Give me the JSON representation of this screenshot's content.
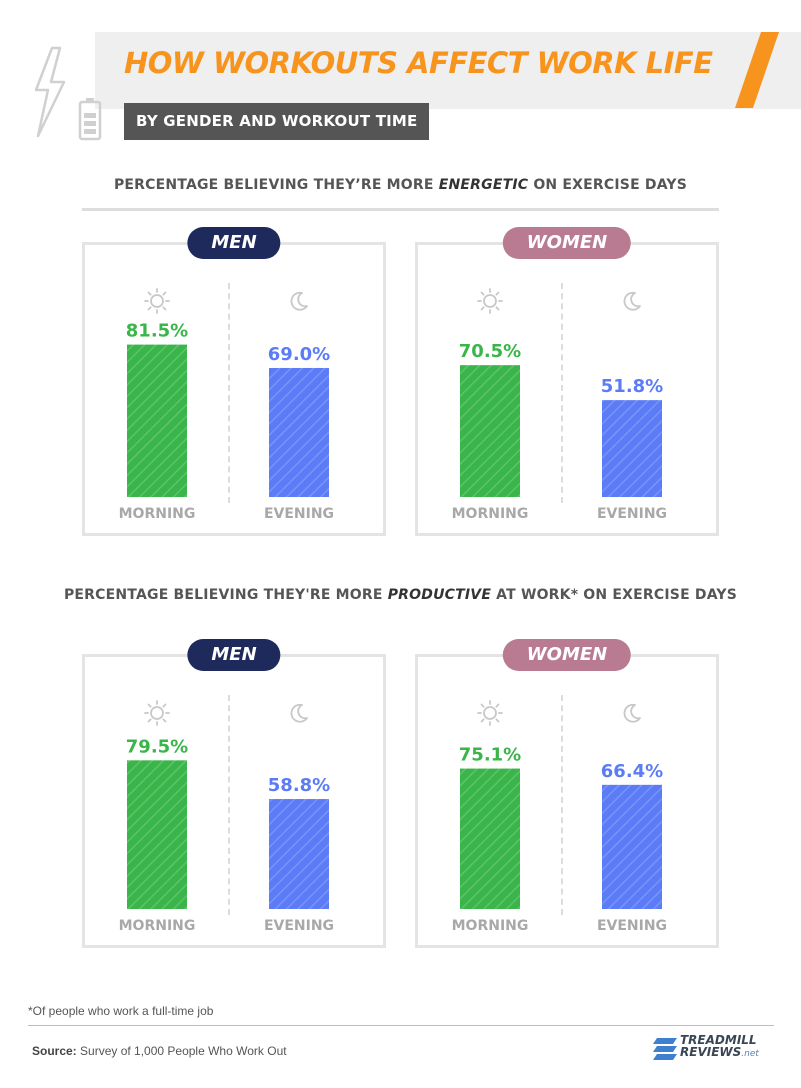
{
  "header": {
    "title": "HOW WORKOUTS AFFECT WORK LIFE",
    "subtitle": "BY GENDER AND WORKOUT TIME",
    "accent_color": "#f7941d"
  },
  "sections": [
    {
      "heading_pre": "PERCENTAGE BELIEVING THEY’RE MORE ",
      "heading_emph": "ENERGETIC",
      "heading_post": " ON EXERCISE DAYS"
    },
    {
      "heading_pre": "PERCENTAGE BELIEVING THEY'RE MORE ",
      "heading_emph": "PRODUCTIVE",
      "heading_post": " AT WORK* ON EXERCISE DAYS"
    }
  ],
  "panel_labels": {
    "men": "MEN",
    "women": "WOMEN"
  },
  "icons": {
    "morning": "sun-icon",
    "evening": "moon-icon",
    "header": "lightning-bolt-icon",
    "battery": "battery-icon"
  },
  "colors": {
    "morning": "#3ab54a",
    "evening": "#5b7cf6",
    "men_badge": "#1f2a5c",
    "women_badge": "#b97b91"
  },
  "chart_data": [
    {
      "type": "bar",
      "section": "energetic",
      "panel": "MEN",
      "categories": [
        "MORNING",
        "EVENING"
      ],
      "values": [
        81.5,
        69.0
      ],
      "value_labels": [
        "81.5%",
        "69.0%"
      ],
      "ylim": [
        0,
        100
      ]
    },
    {
      "type": "bar",
      "section": "energetic",
      "panel": "WOMEN",
      "categories": [
        "MORNING",
        "EVENING"
      ],
      "values": [
        70.5,
        51.8
      ],
      "value_labels": [
        "70.5%",
        "51.8%"
      ],
      "ylim": [
        0,
        100
      ]
    },
    {
      "type": "bar",
      "section": "productive",
      "panel": "MEN",
      "categories": [
        "MORNING",
        "EVENING"
      ],
      "values": [
        79.5,
        58.8
      ],
      "value_labels": [
        "79.5%",
        "58.8%"
      ],
      "ylim": [
        0,
        100
      ]
    },
    {
      "type": "bar",
      "section": "productive",
      "panel": "WOMEN",
      "categories": [
        "MORNING",
        "EVENING"
      ],
      "values": [
        75.1,
        66.4
      ],
      "value_labels": [
        "75.1%",
        "66.4%"
      ],
      "ylim": [
        0,
        100
      ]
    }
  ],
  "footer": {
    "footnote": "*Of people who work a full-time job",
    "source_label": "Source:",
    "source_text": " Survey of 1,000 People Who Work Out",
    "logo_line1": "TREADMILL",
    "logo_line2": "REVIEWS",
    "logo_suffix": ".net"
  }
}
